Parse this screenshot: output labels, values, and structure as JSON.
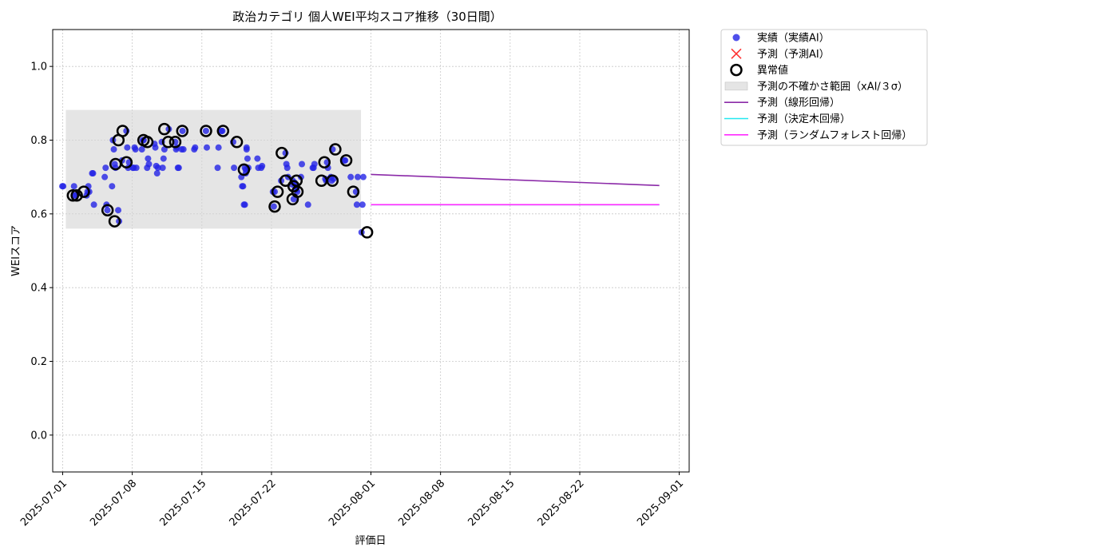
{
  "chart_data": {
    "type": "scatter",
    "title": "政治カテゴリ 個人WEI平均スコア推移（30日間）",
    "xlabel": "評価日",
    "ylabel": "WEIスコア",
    "ylim": [
      -0.1,
      1.1
    ],
    "yticks": [
      "0.0",
      "0.2",
      "0.4",
      "0.6",
      "0.8",
      "1.0"
    ],
    "xlim": [
      "2025-06-30",
      "2025-09-02"
    ],
    "xticks": [
      "2025-07-01",
      "2025-07-08",
      "2025-07-15",
      "2025-07-22",
      "2025-08-01",
      "2025-08-08",
      "2025-08-15",
      "2025-08-22",
      "2025-09-01"
    ],
    "grid": true,
    "legend_position": "outside-top-right",
    "colors": {
      "actual": "#2323e6",
      "predicted": "#ff3333",
      "anomaly": "#000000",
      "band": "#d3d3d3",
      "linear": "#8b2aa8",
      "tree": "#22e8f0",
      "forest": "#ff2aff"
    },
    "legend": [
      {
        "key": "actual",
        "label": "実績（実績AI）"
      },
      {
        "key": "predicted",
        "label": "予測（予測AI）"
      },
      {
        "key": "anomaly",
        "label": "異常値"
      },
      {
        "key": "band",
        "label": "予測の不確かさ範囲（xAI/３σ）"
      },
      {
        "key": "linear",
        "label": "予測（線形回帰）"
      },
      {
        "key": "tree",
        "label": "予測（決定木回帰）"
      },
      {
        "key": "forest",
        "label": "予測（ランダムフォレスト回帰）"
      }
    ],
    "uncertainty_band": {
      "x_start": "2025-07-01",
      "x_end": "2025-07-31",
      "y_low": 0.56,
      "y_high": 0.882
    },
    "series_actual": [
      [
        "2025-07-01",
        0.675
      ],
      [
        "2025-07-01",
        0.675
      ],
      [
        "2025-07-02",
        0.675
      ],
      [
        "2025-07-02",
        0.65
      ],
      [
        "2025-07-02",
        0.65
      ],
      [
        "2025-07-03",
        0.65
      ],
      [
        "2025-07-03",
        0.66
      ],
      [
        "2025-07-03",
        0.675
      ],
      [
        "2025-07-03",
        0.66
      ],
      [
        "2025-07-04",
        0.71
      ],
      [
        "2025-07-04",
        0.71
      ],
      [
        "2025-07-04",
        0.625
      ],
      [
        "2025-07-05",
        0.7
      ],
      [
        "2025-07-05",
        0.725
      ],
      [
        "2025-07-05",
        0.625
      ],
      [
        "2025-07-05",
        0.61
      ],
      [
        "2025-07-06",
        0.61
      ],
      [
        "2025-07-06",
        0.58
      ],
      [
        "2025-07-06",
        0.675
      ],
      [
        "2025-07-06",
        0.8
      ],
      [
        "2025-07-06",
        0.775
      ],
      [
        "2025-07-06",
        0.735
      ],
      [
        "2025-07-06",
        0.725
      ],
      [
        "2025-07-07",
        0.825
      ],
      [
        "2025-07-07",
        0.78
      ],
      [
        "2025-07-07",
        0.725
      ],
      [
        "2025-07-07",
        0.74
      ],
      [
        "2025-07-07",
        0.745
      ],
      [
        "2025-07-08",
        0.725
      ],
      [
        "2025-07-08",
        0.725
      ],
      [
        "2025-07-08",
        0.78
      ],
      [
        "2025-07-08",
        0.775
      ],
      [
        "2025-07-08",
        0.725
      ],
      [
        "2025-07-09",
        0.725
      ],
      [
        "2025-07-09",
        0.75
      ],
      [
        "2025-07-09",
        0.735
      ],
      [
        "2025-07-09",
        0.775
      ],
      [
        "2025-07-09",
        0.8
      ],
      [
        "2025-07-09",
        0.8
      ],
      [
        "2025-07-10",
        0.79
      ],
      [
        "2025-07-10",
        0.78
      ],
      [
        "2025-07-10",
        0.73
      ],
      [
        "2025-07-10",
        0.71
      ],
      [
        "2025-07-10",
        0.725
      ],
      [
        "2025-07-11",
        0.83
      ],
      [
        "2025-07-11",
        0.795
      ],
      [
        "2025-07-11",
        0.725
      ],
      [
        "2025-07-11",
        0.75
      ],
      [
        "2025-07-11",
        0.775
      ],
      [
        "2025-07-12",
        0.795
      ],
      [
        "2025-07-12",
        0.775
      ],
      [
        "2025-07-12",
        0.78
      ],
      [
        "2025-07-12",
        0.725
      ],
      [
        "2025-07-12",
        0.725
      ],
      [
        "2025-07-13",
        0.775
      ],
      [
        "2025-07-13",
        0.825
      ],
      [
        "2025-07-13",
        0.775
      ],
      [
        "2025-07-14",
        0.775
      ],
      [
        "2025-07-14",
        0.78
      ],
      [
        "2025-07-15",
        0.825
      ],
      [
        "2025-07-15",
        0.78
      ],
      [
        "2025-07-16",
        0.725
      ],
      [
        "2025-07-16",
        0.78
      ],
      [
        "2025-07-17",
        0.825
      ],
      [
        "2025-07-17",
        0.825
      ],
      [
        "2025-07-18",
        0.795
      ],
      [
        "2025-07-18",
        0.725
      ],
      [
        "2025-07-19",
        0.725
      ],
      [
        "2025-07-19",
        0.72
      ],
      [
        "2025-07-19",
        0.775
      ],
      [
        "2025-07-19",
        0.75
      ],
      [
        "2025-07-19",
        0.725
      ],
      [
        "2025-07-19",
        0.7
      ],
      [
        "2025-07-19",
        0.675
      ],
      [
        "2025-07-19",
        0.675
      ],
      [
        "2025-07-19",
        0.625
      ],
      [
        "2025-07-19",
        0.625
      ],
      [
        "2025-07-19",
        0.71
      ],
      [
        "2025-07-19",
        0.78
      ],
      [
        "2025-07-20",
        0.75
      ],
      [
        "2025-07-20",
        0.725
      ],
      [
        "2025-07-21",
        0.725
      ],
      [
        "2025-07-21",
        0.73
      ],
      [
        "2025-07-22",
        0.66
      ],
      [
        "2025-07-22",
        0.62
      ],
      [
        "2025-07-22",
        0.66
      ],
      [
        "2025-07-23",
        0.765
      ],
      [
        "2025-07-23",
        0.735
      ],
      [
        "2025-07-23",
        0.725
      ],
      [
        "2025-07-23",
        0.7
      ],
      [
        "2025-07-23",
        0.69
      ],
      [
        "2025-07-24",
        0.68
      ],
      [
        "2025-07-24",
        0.69
      ],
      [
        "2025-07-24",
        0.64
      ],
      [
        "2025-07-24",
        0.685
      ],
      [
        "2025-07-24",
        0.675
      ],
      [
        "2025-07-24",
        0.665
      ],
      [
        "2025-07-24",
        0.66
      ],
      [
        "2025-07-25",
        0.625
      ],
      [
        "2025-07-25",
        0.7
      ],
      [
        "2025-07-25",
        0.735
      ],
      [
        "2025-07-26",
        0.725
      ],
      [
        "2025-07-26",
        0.725
      ],
      [
        "2025-07-26",
        0.735
      ],
      [
        "2025-07-27",
        0.695
      ],
      [
        "2025-07-27",
        0.69
      ],
      [
        "2025-07-27",
        0.74
      ],
      [
        "2025-07-27",
        0.725
      ],
      [
        "2025-07-28",
        0.7
      ],
      [
        "2025-07-28",
        0.69
      ],
      [
        "2025-07-28",
        0.775
      ],
      [
        "2025-07-28",
        0.695
      ],
      [
        "2025-07-29",
        0.745
      ],
      [
        "2025-07-29",
        0.745
      ],
      [
        "2025-07-30",
        0.66
      ],
      [
        "2025-07-30",
        0.625
      ],
      [
        "2025-07-30",
        0.7
      ],
      [
        "2025-07-30",
        0.7
      ],
      [
        "2025-07-31",
        0.55
      ],
      [
        "2025-07-31",
        0.625
      ],
      [
        "2025-07-31",
        0.7
      ]
    ],
    "series_anomaly": [
      [
        "2025-07-02",
        0.65
      ],
      [
        "2025-07-02",
        0.65
      ],
      [
        "2025-07-03",
        0.66
      ],
      [
        "2025-07-05",
        0.61
      ],
      [
        "2025-07-06",
        0.58
      ],
      [
        "2025-07-06",
        0.8
      ],
      [
        "2025-07-06",
        0.735
      ],
      [
        "2025-07-07",
        0.825
      ],
      [
        "2025-07-07",
        0.74
      ],
      [
        "2025-07-09",
        0.8
      ],
      [
        "2025-07-09",
        0.795
      ],
      [
        "2025-07-11",
        0.83
      ],
      [
        "2025-07-11",
        0.795
      ],
      [
        "2025-07-12",
        0.795
      ],
      [
        "2025-07-13",
        0.825
      ],
      [
        "2025-07-15",
        0.825
      ],
      [
        "2025-07-17",
        0.825
      ],
      [
        "2025-07-18",
        0.795
      ],
      [
        "2025-07-19",
        0.72
      ],
      [
        "2025-07-22",
        0.66
      ],
      [
        "2025-07-22",
        0.62
      ],
      [
        "2025-07-23",
        0.765
      ],
      [
        "2025-07-23",
        0.69
      ],
      [
        "2025-07-24",
        0.64
      ],
      [
        "2025-07-24",
        0.69
      ],
      [
        "2025-07-24",
        0.675
      ],
      [
        "2025-07-24",
        0.66
      ],
      [
        "2025-07-27",
        0.74
      ],
      [
        "2025-07-27",
        0.69
      ],
      [
        "2025-07-28",
        0.775
      ],
      [
        "2025-07-28",
        0.69
      ],
      [
        "2025-07-29",
        0.745
      ],
      [
        "2025-07-30",
        0.66
      ],
      [
        "2025-07-31",
        0.55
      ]
    ],
    "series_linear": {
      "x": [
        "2025-08-01",
        "2025-08-30"
      ],
      "y": [
        0.707,
        0.677
      ]
    },
    "series_tree": {
      "x": [
        "2025-08-01",
        "2025-08-30"
      ],
      "y": [
        0.625,
        0.625
      ]
    },
    "series_forest": {
      "x": [
        "2025-08-01",
        "2025-08-30"
      ],
      "y": [
        0.625,
        0.625
      ]
    }
  }
}
